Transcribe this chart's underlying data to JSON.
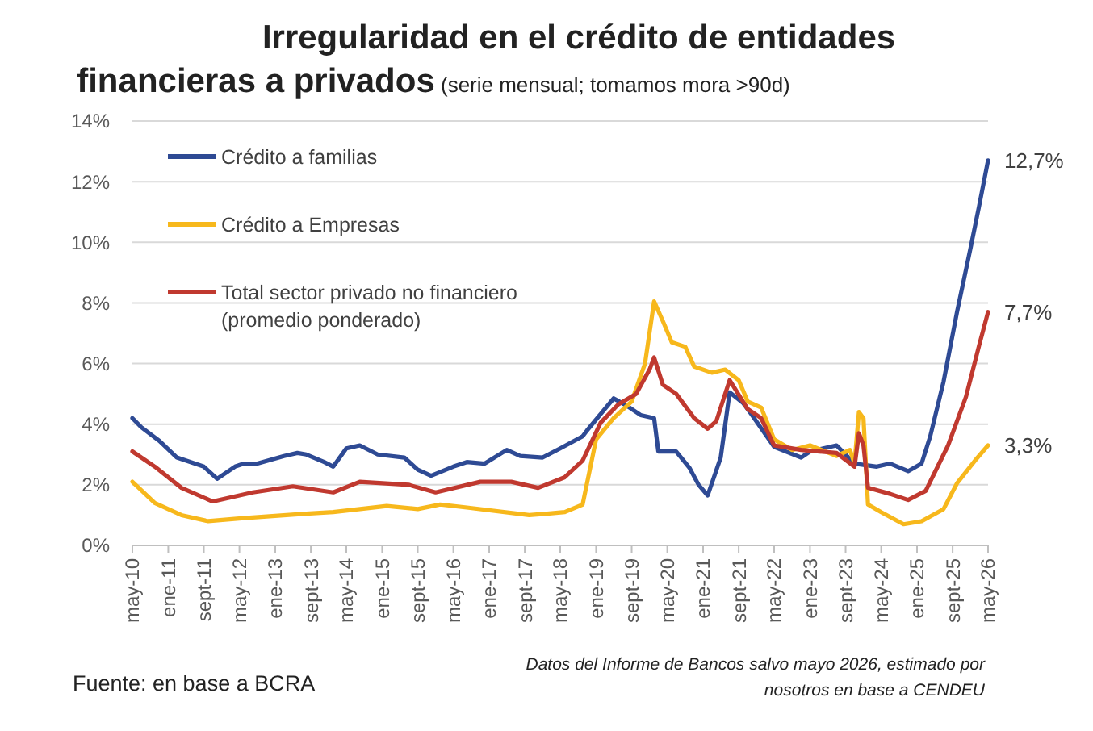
{
  "chart_data": {
    "type": "line",
    "title": "Irregularidad en el crédito de entidades financieras a privados",
    "subtitle": "(serie mensual; tomamos mora >90d)",
    "xlim": [
      "2010-05",
      "2026-05"
    ],
    "xticks": [
      {
        "value": "2010-05",
        "label": "may-10"
      },
      {
        "value": "2011-01",
        "label": "ene-11"
      },
      {
        "value": "2011-09",
        "label": "sept-11"
      },
      {
        "value": "2012-05",
        "label": "may-12"
      },
      {
        "value": "2013-01",
        "label": "ene-13"
      },
      {
        "value": "2013-09",
        "label": "sept-13"
      },
      {
        "value": "2014-05",
        "label": "may-14"
      },
      {
        "value": "2015-01",
        "label": "ene-15"
      },
      {
        "value": "2015-09",
        "label": "sept-15"
      },
      {
        "value": "2016-05",
        "label": "may-16"
      },
      {
        "value": "2017-01",
        "label": "ene-17"
      },
      {
        "value": "2017-09",
        "label": "sept-17"
      },
      {
        "value": "2018-05",
        "label": "may-18"
      },
      {
        "value": "2019-01",
        "label": "ene-19"
      },
      {
        "value": "2019-09",
        "label": "sept-19"
      },
      {
        "value": "2020-05",
        "label": "may-20"
      },
      {
        "value": "2021-01",
        "label": "ene-21"
      },
      {
        "value": "2021-09",
        "label": "sept-21"
      },
      {
        "value": "2022-05",
        "label": "may-22"
      },
      {
        "value": "2023-01",
        "label": "ene-23"
      },
      {
        "value": "2023-09",
        "label": "sept-23"
      },
      {
        "value": "2024-05",
        "label": "may-24"
      },
      {
        "value": "2025-01",
        "label": "ene-25"
      },
      {
        "value": "2025-09",
        "label": "sept-25"
      },
      {
        "value": "2026-05",
        "label": "may-26"
      }
    ],
    "ylim": [
      0,
      14
    ],
    "yticks": [
      {
        "value": 0,
        "label": "0%"
      },
      {
        "value": 2,
        "label": "2%"
      },
      {
        "value": 4,
        "label": "4%"
      },
      {
        "value": 6,
        "label": "6%"
      },
      {
        "value": 8,
        "label": "8%"
      },
      {
        "value": 10,
        "label": "10%"
      },
      {
        "value": 12,
        "label": "12%"
      },
      {
        "value": 14,
        "label": "14%"
      }
    ],
    "grid": "y",
    "legend": "top left",
    "marker": "none",
    "line_style": "solid",
    "series": [
      {
        "name": "Crédito a familias",
        "color": "#2e4a94",
        "x": [
          "2010-05",
          "2010-07",
          "2010-11",
          "2011-03",
          "2011-09",
          "2011-12",
          "2012-04",
          "2012-06",
          "2012-09",
          "2013-03",
          "2013-06",
          "2013-08",
          "2013-12",
          "2014-02",
          "2014-05",
          "2014-08",
          "2014-12",
          "2015-06",
          "2015-09",
          "2015-12",
          "2016-05",
          "2016-08",
          "2016-12",
          "2017-05",
          "2017-08",
          "2018-01",
          "2018-05",
          "2018-10",
          "2018-11",
          "2019-05",
          "2019-08",
          "2019-11",
          "2020-02",
          "2020-03",
          "2020-07",
          "2020-10",
          "2020-12",
          "2021-02",
          "2021-05",
          "2021-07",
          "2021-10",
          "2021-12",
          "2022-05",
          "2022-11",
          "2023-01",
          "2023-07",
          "2023-11",
          "2024-04",
          "2024-07",
          "2024-11",
          "2025-02",
          "2025-04",
          "2025-07",
          "2025-10",
          "2026-01",
          "2026-03",
          "2026-05"
        ],
        "values": [
          4.2,
          3.9,
          3.45,
          2.9,
          2.6,
          2.2,
          2.6,
          2.7,
          2.7,
          2.95,
          3.05,
          3.0,
          2.75,
          2.6,
          3.2,
          3.3,
          3.0,
          2.9,
          2.5,
          2.3,
          2.6,
          2.75,
          2.7,
          3.15,
          2.95,
          2.9,
          3.2,
          3.6,
          3.8,
          4.85,
          4.6,
          4.3,
          4.2,
          3.1,
          3.1,
          2.55,
          2.0,
          1.65,
          2.9,
          5.05,
          4.7,
          4.3,
          3.25,
          2.9,
          3.1,
          3.3,
          2.7,
          2.6,
          2.7,
          2.45,
          2.7,
          3.6,
          5.4,
          7.7,
          9.8,
          11.2,
          12.7
        ]
      },
      {
        "name": "Crédito a Empresas",
        "color": "#f7b81c",
        "x": [
          "2010-05",
          "2010-10",
          "2011-04",
          "2011-10",
          "2012-06",
          "2013-08",
          "2014-02",
          "2015-02",
          "2015-09",
          "2016-02",
          "2016-08",
          "2017-10",
          "2018-02",
          "2018-06",
          "2018-10",
          "2019-01",
          "2019-05",
          "2019-09",
          "2019-12",
          "2020-02",
          "2020-04",
          "2020-06",
          "2020-09",
          "2020-11",
          "2021-03",
          "2021-06",
          "2021-09",
          "2021-11",
          "2022-02",
          "2022-05",
          "2022-09",
          "2023-01",
          "2023-07",
          "2023-10",
          "2023-11",
          "2023-12",
          "2024-01",
          "2024-02",
          "2024-05",
          "2024-10",
          "2025-02",
          "2025-07",
          "2025-10",
          "2026-02",
          "2026-05"
        ],
        "values": [
          2.1,
          1.4,
          1.0,
          0.8,
          0.9,
          1.05,
          1.1,
          1.3,
          1.2,
          1.35,
          1.25,
          1.0,
          1.05,
          1.1,
          1.35,
          3.5,
          4.2,
          4.75,
          6.0,
          8.05,
          7.4,
          6.7,
          6.55,
          5.9,
          5.7,
          5.8,
          5.45,
          4.75,
          4.55,
          3.5,
          3.15,
          3.3,
          2.95,
          3.15,
          2.7,
          4.4,
          4.2,
          1.35,
          1.1,
          0.7,
          0.8,
          1.2,
          2.05,
          2.8,
          3.3
        ]
      },
      {
        "name": "Total sector privado no financiero (promedio ponderado)",
        "color": "#c0392f",
        "x": [
          "2010-05",
          "2010-10",
          "2011-04",
          "2011-11",
          "2012-08",
          "2013-05",
          "2014-02",
          "2014-08",
          "2015-07",
          "2016-01",
          "2016-11",
          "2017-06",
          "2017-12",
          "2018-06",
          "2018-10",
          "2019-02",
          "2019-06",
          "2019-10",
          "2020-01",
          "2020-02",
          "2020-04",
          "2020-07",
          "2020-11",
          "2021-02",
          "2021-04",
          "2021-07",
          "2021-11",
          "2022-02",
          "2022-05",
          "2022-11",
          "2023-07",
          "2023-11",
          "2023-12",
          "2024-01",
          "2024-02",
          "2024-07",
          "2024-11",
          "2025-03",
          "2025-08",
          "2025-12",
          "2026-03",
          "2026-05"
        ],
        "values": [
          3.1,
          2.6,
          1.9,
          1.45,
          1.75,
          1.95,
          1.75,
          2.1,
          2.0,
          1.75,
          2.1,
          2.1,
          1.9,
          2.25,
          2.8,
          4.05,
          4.65,
          5.0,
          5.8,
          6.2,
          5.3,
          5.0,
          4.2,
          3.85,
          4.1,
          5.45,
          4.5,
          4.2,
          3.3,
          3.15,
          3.05,
          2.6,
          3.7,
          3.3,
          1.9,
          1.7,
          1.5,
          1.8,
          3.3,
          4.9,
          6.6,
          7.7
        ]
      }
    ],
    "annotations": [
      {
        "text": "12,7%",
        "x": "2026-05",
        "y": 12.7
      },
      {
        "text": "7,7%",
        "x": "2026-05",
        "y": 7.7
      },
      {
        "text": "3,3%",
        "x": "2026-05",
        "y": 3.3
      },
      "Fuente: en base a BCRA",
      "Datos del Informe de Bancos salvo mayo 2026, estimado por nosotros en base a CENDEU"
    ]
  }
}
